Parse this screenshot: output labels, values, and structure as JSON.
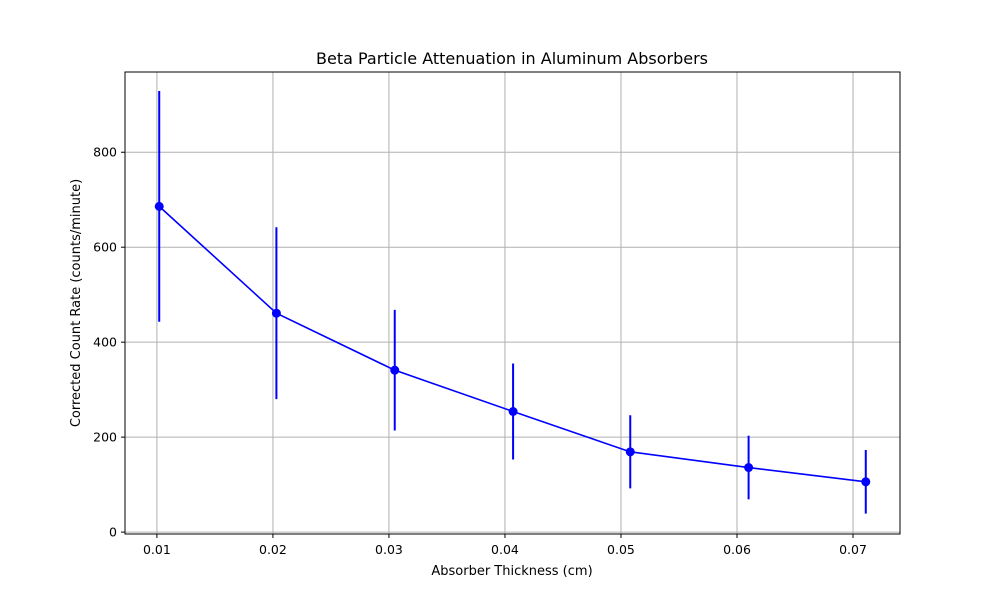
{
  "chart_data": {
    "type": "line",
    "title": "Beta Particle Attenuation in Aluminum Absorbers",
    "xlabel": "Absorber Thickness (cm)",
    "ylabel": "Corrected Count Rate (counts/minute)",
    "x": [
      0.0102,
      0.0203,
      0.0305,
      0.0407,
      0.0508,
      0.061,
      0.0711
    ],
    "series": [
      {
        "values": [
          686,
          461,
          341,
          254,
          169,
          136,
          106
        ],
        "errors": [
          243,
          181,
          127,
          101,
          77,
          67,
          67
        ],
        "color": "#0000ff"
      }
    ],
    "xlim": [
      0.00725,
      0.07405
    ],
    "ylim": [
      -4,
      969
    ],
    "xticks": [
      0.01,
      0.02,
      0.03,
      0.04,
      0.05,
      0.06,
      0.07
    ],
    "xtick_labels": [
      "0.01",
      "0.02",
      "0.03",
      "0.04",
      "0.05",
      "0.06",
      "0.07"
    ],
    "yticks": [
      0,
      200,
      400,
      600,
      800
    ],
    "ytick_labels": [
      "0",
      "200",
      "400",
      "600",
      "800"
    ],
    "grid": true
  }
}
